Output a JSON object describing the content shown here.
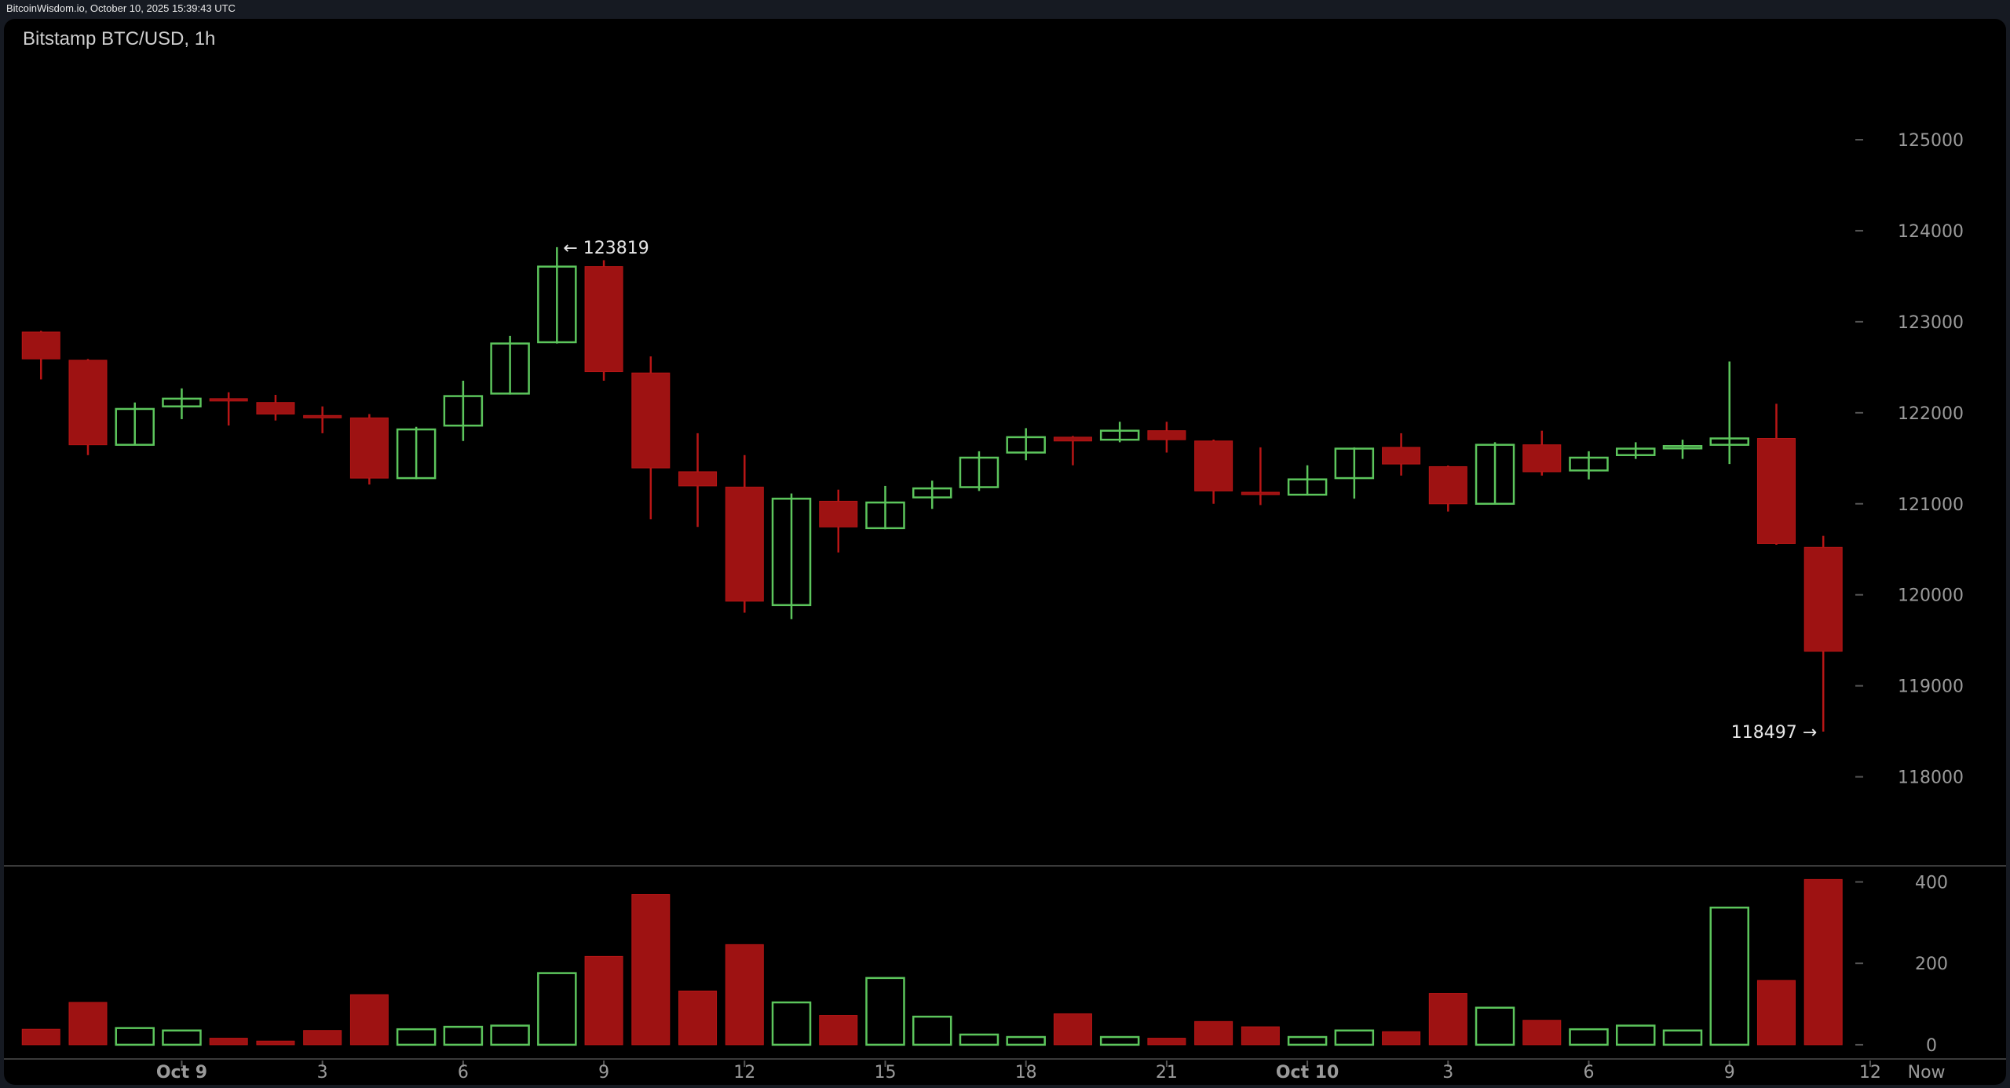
{
  "topbar": {
    "text": "BitcoinWisdom.io, October 10, 2025 15:39:43 UTC"
  },
  "chart_data": {
    "type": "candlestick",
    "title": "Bitstamp BTC/USD, 1h",
    "colors": {
      "up": "#5cc55c",
      "down": "#9e1212",
      "background": "#000000"
    },
    "price_axis": {
      "ticks": [
        118000,
        119000,
        120000,
        121000,
        122000,
        123000,
        124000,
        125000
      ]
    },
    "volume_axis": {
      "ticks": [
        0,
        200,
        400
      ]
    },
    "x_labels": [
      {
        "index": 3,
        "label": "Oct 9",
        "bold": true
      },
      {
        "index": 6,
        "label": "3"
      },
      {
        "index": 9,
        "label": "6"
      },
      {
        "index": 12,
        "label": "9"
      },
      {
        "index": 15,
        "label": "12"
      },
      {
        "index": 18,
        "label": "15"
      },
      {
        "index": 21,
        "label": "18"
      },
      {
        "index": 24,
        "label": "21"
      },
      {
        "index": 27,
        "label": "Oct 10",
        "bold": true
      },
      {
        "index": 30,
        "label": "3"
      },
      {
        "index": 33,
        "label": "6"
      },
      {
        "index": 36,
        "label": "9"
      },
      {
        "index": 39,
        "label": "12"
      },
      {
        "index": 40.2,
        "label": "Now"
      }
    ],
    "annotations": {
      "high": {
        "index": 11,
        "value": 123819,
        "text": "← 123819"
      },
      "low": {
        "index": 38,
        "value": 118497,
        "text": "118497 →"
      }
    },
    "candles": [
      {
        "o": 122887,
        "h": 122900,
        "l": 122366,
        "c": 122592,
        "v": 38
      },
      {
        "o": 122577,
        "h": 122590,
        "l": 121535,
        "c": 121648,
        "v": 104
      },
      {
        "o": 121648,
        "h": 122113,
        "l": 121640,
        "c": 122042,
        "v": 41
      },
      {
        "o": 122070,
        "h": 122268,
        "l": 121930,
        "c": 122155,
        "v": 35
      },
      {
        "o": 122155,
        "h": 122225,
        "l": 121860,
        "c": 122130,
        "v": 16
      },
      {
        "o": 122113,
        "h": 122197,
        "l": 121915,
        "c": 121986,
        "v": 9
      },
      {
        "o": 121970,
        "h": 122070,
        "l": 121775,
        "c": 121945,
        "v": 35
      },
      {
        "o": 121944,
        "h": 121986,
        "l": 121211,
        "c": 121282,
        "v": 123
      },
      {
        "o": 121282,
        "h": 121845,
        "l": 121270,
        "c": 121817,
        "v": 38
      },
      {
        "o": 121859,
        "h": 122352,
        "l": 121690,
        "c": 122183,
        "v": 44
      },
      {
        "o": 122211,
        "h": 122845,
        "l": 122200,
        "c": 122761,
        "v": 47
      },
      {
        "o": 122775,
        "h": 123819,
        "l": 122761,
        "c": 123606,
        "v": 176
      },
      {
        "o": 123606,
        "h": 123676,
        "l": 122352,
        "c": 122451,
        "v": 217
      },
      {
        "o": 122437,
        "h": 122620,
        "l": 120831,
        "c": 121394,
        "v": 369
      },
      {
        "o": 121352,
        "h": 121775,
        "l": 120746,
        "c": 121197,
        "v": 132
      },
      {
        "o": 121183,
        "h": 121535,
        "l": 119803,
        "c": 119930,
        "v": 246
      },
      {
        "o": 119887,
        "h": 121113,
        "l": 119732,
        "c": 121056,
        "v": 104
      },
      {
        "o": 121028,
        "h": 121155,
        "l": 120465,
        "c": 120746,
        "v": 72
      },
      {
        "o": 120732,
        "h": 121197,
        "l": 120720,
        "c": 121014,
        "v": 164
      },
      {
        "o": 121070,
        "h": 121254,
        "l": 120944,
        "c": 121169,
        "v": 69
      },
      {
        "o": 121183,
        "h": 121577,
        "l": 121141,
        "c": 121507,
        "v": 25
      },
      {
        "o": 121563,
        "h": 121831,
        "l": 121479,
        "c": 121732,
        "v": 19
      },
      {
        "o": 121732,
        "h": 121745,
        "l": 121423,
        "c": 121690,
        "v": 76
      },
      {
        "o": 121704,
        "h": 121901,
        "l": 121676,
        "c": 121803,
        "v": 19
      },
      {
        "o": 121803,
        "h": 121901,
        "l": 121563,
        "c": 121704,
        "v": 16
      },
      {
        "o": 121690,
        "h": 121705,
        "l": 121000,
        "c": 121141,
        "v": 57
      },
      {
        "o": 121127,
        "h": 121620,
        "l": 120986,
        "c": 121100,
        "v": 44
      },
      {
        "o": 121100,
        "h": 121423,
        "l": 121090,
        "c": 121268,
        "v": 19
      },
      {
        "o": 121282,
        "h": 121620,
        "l": 121056,
        "c": 121606,
        "v": 35
      },
      {
        "o": 121620,
        "h": 121775,
        "l": 121310,
        "c": 121437,
        "v": 32
      },
      {
        "o": 121408,
        "h": 121420,
        "l": 120915,
        "c": 121000,
        "v": 126
      },
      {
        "o": 121000,
        "h": 121676,
        "l": 120990,
        "c": 121648,
        "v": 91
      },
      {
        "o": 121648,
        "h": 121803,
        "l": 121310,
        "c": 121352,
        "v": 60
      },
      {
        "o": 121366,
        "h": 121577,
        "l": 121268,
        "c": 121507,
        "v": 38
      },
      {
        "o": 121535,
        "h": 121676,
        "l": 121493,
        "c": 121606,
        "v": 47
      },
      {
        "o": 121620,
        "h": 121704,
        "l": 121493,
        "c": 121634,
        "v": 35
      },
      {
        "o": 121648,
        "h": 122563,
        "l": 121437,
        "c": 121718,
        "v": 337
      },
      {
        "o": 121718,
        "h": 122099,
        "l": 120549,
        "c": 120563,
        "v": 158
      },
      {
        "o": 120521,
        "h": 120648,
        "l": 118497,
        "c": 119380,
        "v": 406
      }
    ]
  }
}
